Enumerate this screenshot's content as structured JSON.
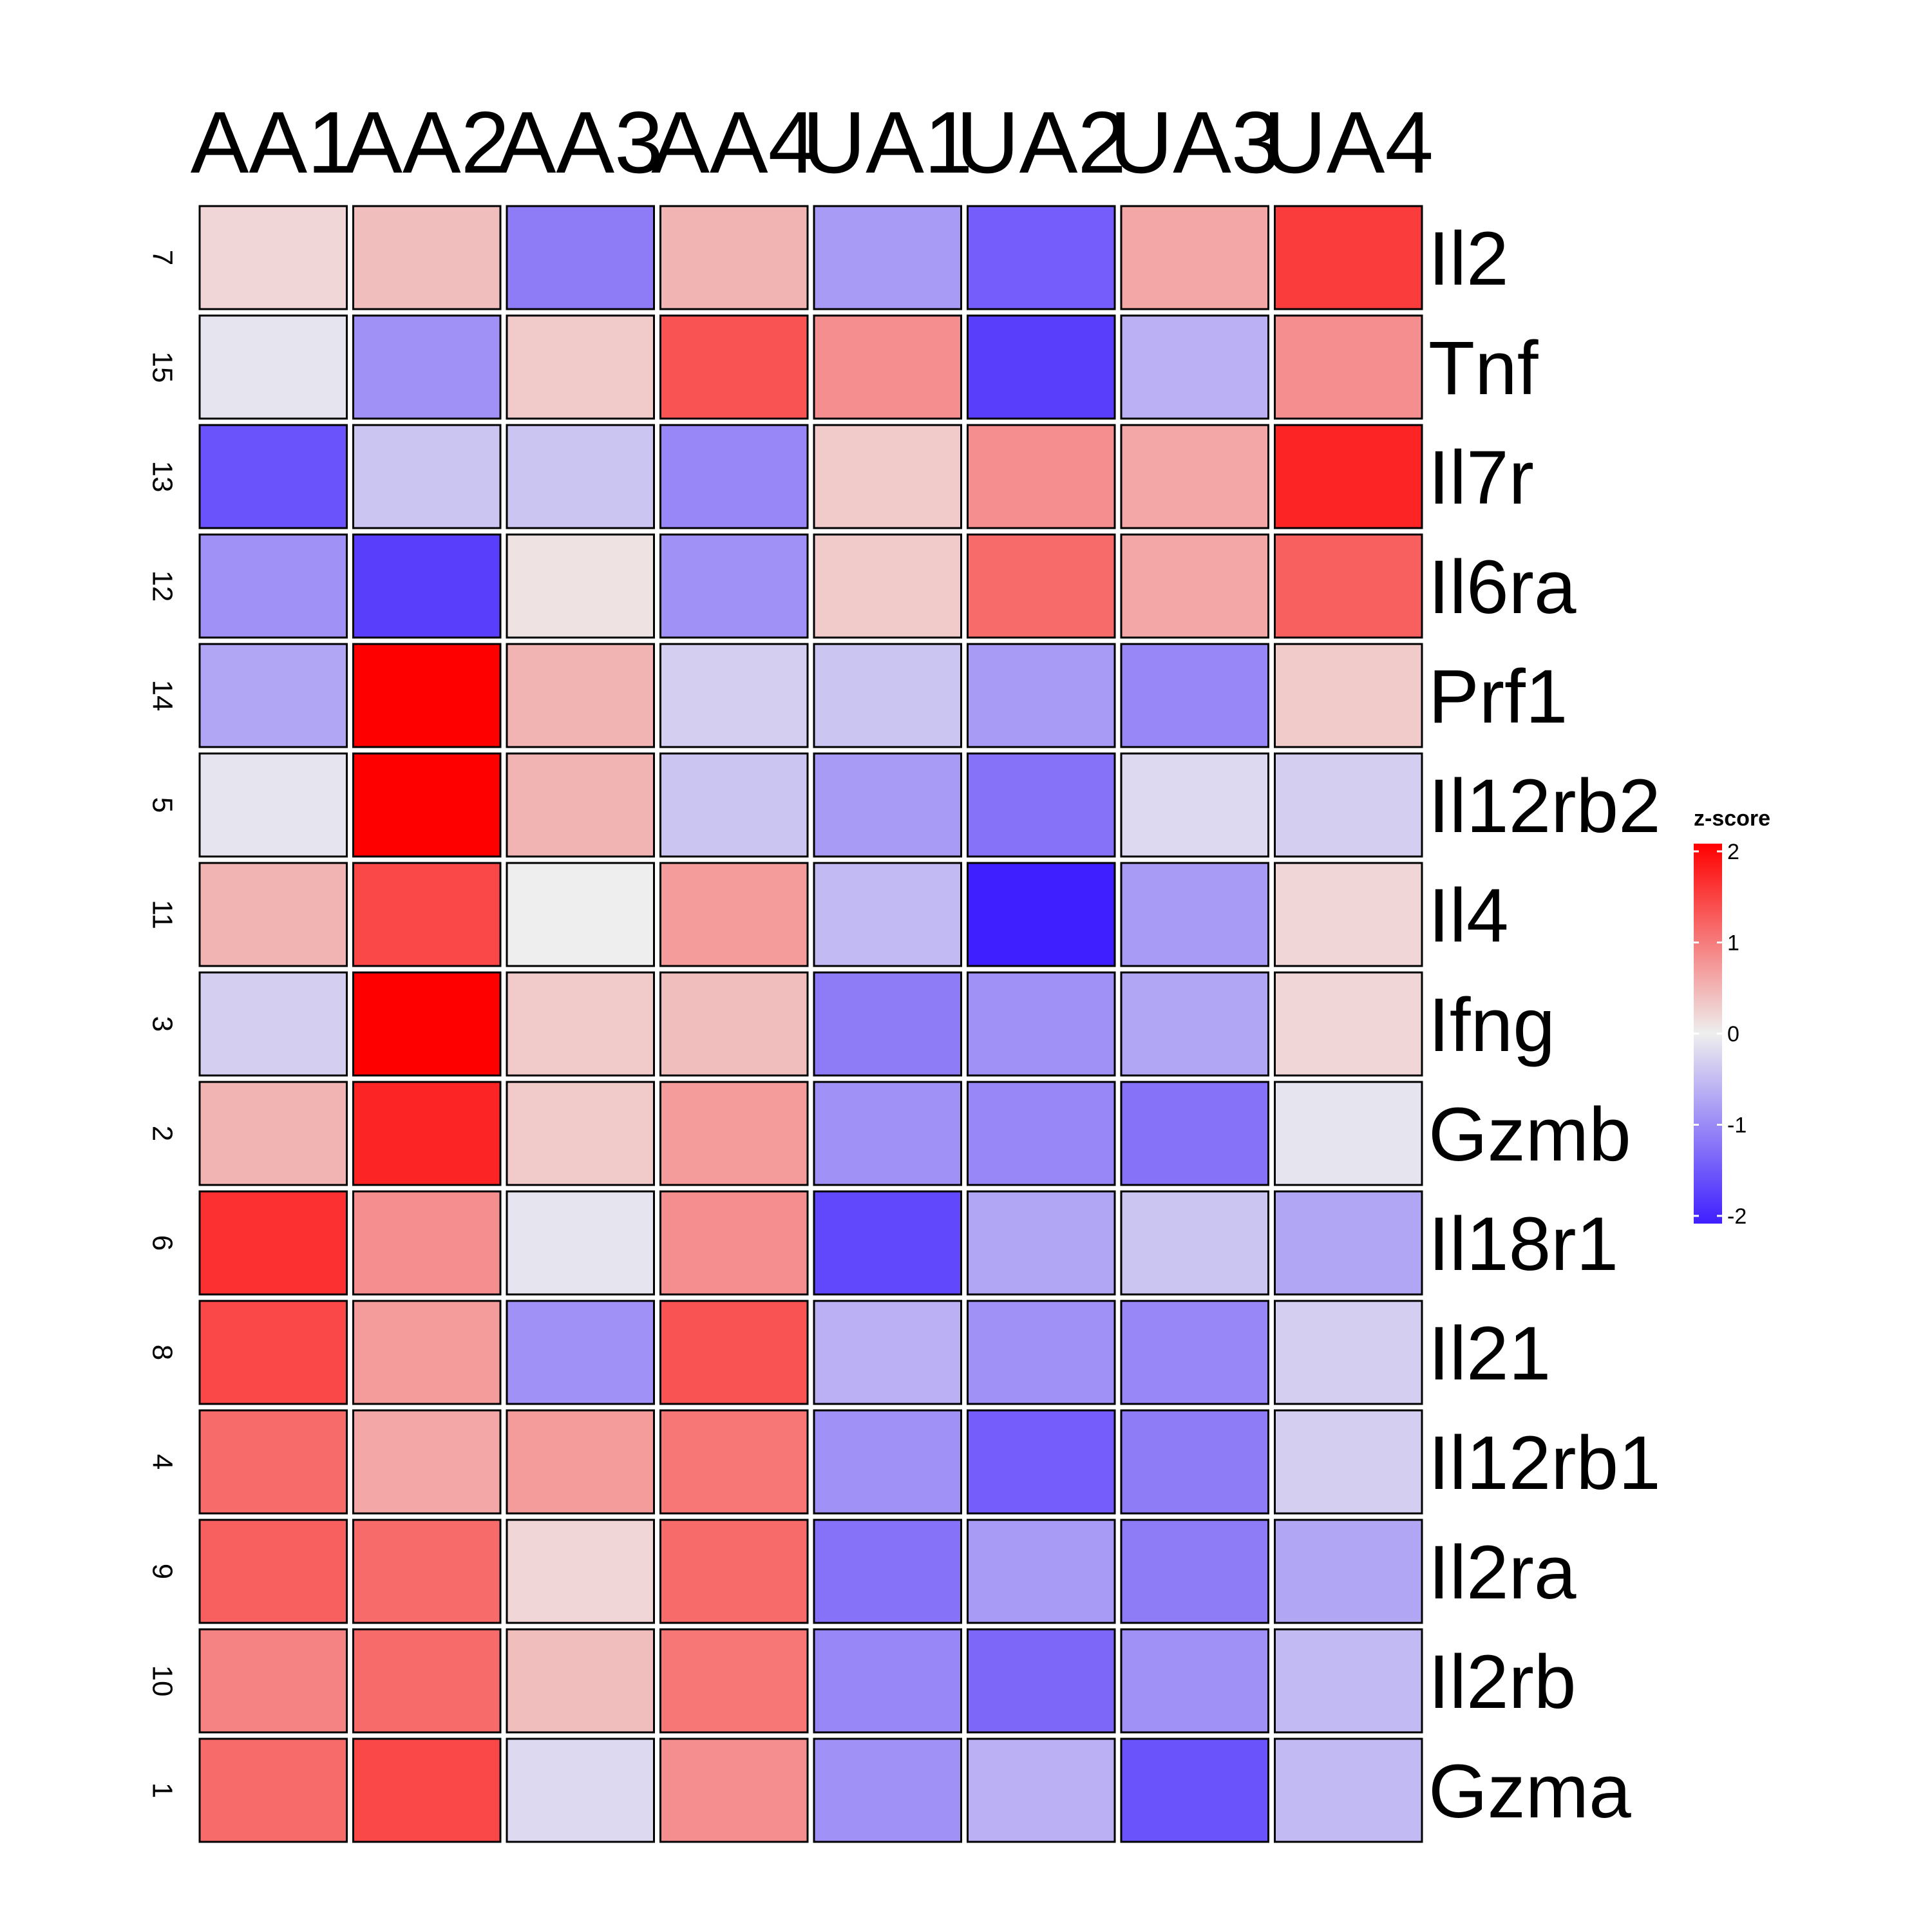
{
  "chart_data": {
    "type": "heatmap",
    "columns": [
      "AA1",
      "AA2",
      "AA3",
      "AA4",
      "UA1",
      "UA2",
      "UA3",
      "UA4"
    ],
    "rows": [
      {
        "index": "7",
        "gene": "Il2",
        "values": [
          0.2,
          0.4,
          -1.1,
          0.5,
          -0.8,
          -1.4,
          0.6,
          1.5
        ]
      },
      {
        "index": "15",
        "gene": "Tnf",
        "values": [
          -0.1,
          -0.9,
          0.3,
          1.3,
          0.8,
          -1.7,
          -0.6,
          0.8
        ]
      },
      {
        "index": "13",
        "gene": "Il7r",
        "values": [
          -1.5,
          -0.4,
          -0.4,
          -1.0,
          0.3,
          0.8,
          0.6,
          1.7
        ]
      },
      {
        "index": "12",
        "gene": "Il6ra",
        "values": [
          -0.9,
          -1.7,
          0.1,
          -0.9,
          0.3,
          1.1,
          0.6,
          1.2
        ]
      },
      {
        "index": "14",
        "gene": "Prf1",
        "values": [
          -0.7,
          2.3,
          0.5,
          -0.3,
          -0.4,
          -0.8,
          -1.0,
          0.3
        ]
      },
      {
        "index": "5",
        "gene": "Il12rb2",
        "values": [
          -0.1,
          2.3,
          0.5,
          -0.4,
          -0.8,
          -1.2,
          -0.2,
          -0.3
        ]
      },
      {
        "index": "11",
        "gene": "Il4",
        "values": [
          0.5,
          1.4,
          0.0,
          0.7,
          -0.5,
          -2.1,
          -0.8,
          0.2
        ]
      },
      {
        "index": "3",
        "gene": "Ifng",
        "values": [
          -0.3,
          2.0,
          0.3,
          0.4,
          -1.1,
          -0.9,
          -0.7,
          0.2
        ]
      },
      {
        "index": "2",
        "gene": "Gzmb",
        "values": [
          0.5,
          1.7,
          0.3,
          0.7,
          -0.9,
          -1.0,
          -1.2,
          -0.1
        ]
      },
      {
        "index": "6",
        "gene": "Il18r1",
        "values": [
          1.6,
          0.8,
          -0.1,
          0.8,
          -1.6,
          -0.7,
          -0.4,
          -0.7
        ]
      },
      {
        "index": "8",
        "gene": "Il21",
        "values": [
          1.4,
          0.7,
          -0.9,
          1.3,
          -0.6,
          -0.9,
          -1.0,
          -0.3
        ]
      },
      {
        "index": "4",
        "gene": "Il12rb1",
        "values": [
          1.1,
          0.6,
          0.7,
          1.0,
          -0.9,
          -1.4,
          -1.1,
          -0.3
        ]
      },
      {
        "index": "9",
        "gene": "Il2ra",
        "values": [
          1.2,
          1.1,
          0.2,
          1.1,
          -1.2,
          -0.8,
          -1.1,
          -0.7
        ]
      },
      {
        "index": "10",
        "gene": "Il2rb",
        "values": [
          0.9,
          1.1,
          0.4,
          1.0,
          -1.0,
          -1.3,
          -0.9,
          -0.5
        ]
      },
      {
        "index": "1",
        "gene": "Gzma",
        "values": [
          1.1,
          1.4,
          -0.2,
          0.8,
          -0.9,
          -0.6,
          -1.5,
          -0.5
        ]
      }
    ],
    "legend": {
      "title": "z-score",
      "range": [
        -2,
        2
      ],
      "ticks": [
        "2",
        "1",
        "0",
        "-1",
        "-2"
      ],
      "placement": "right",
      "color_low": "#3f1fff",
      "color_mid": "#eeeeee",
      "color_high": "#ff0000"
    }
  }
}
